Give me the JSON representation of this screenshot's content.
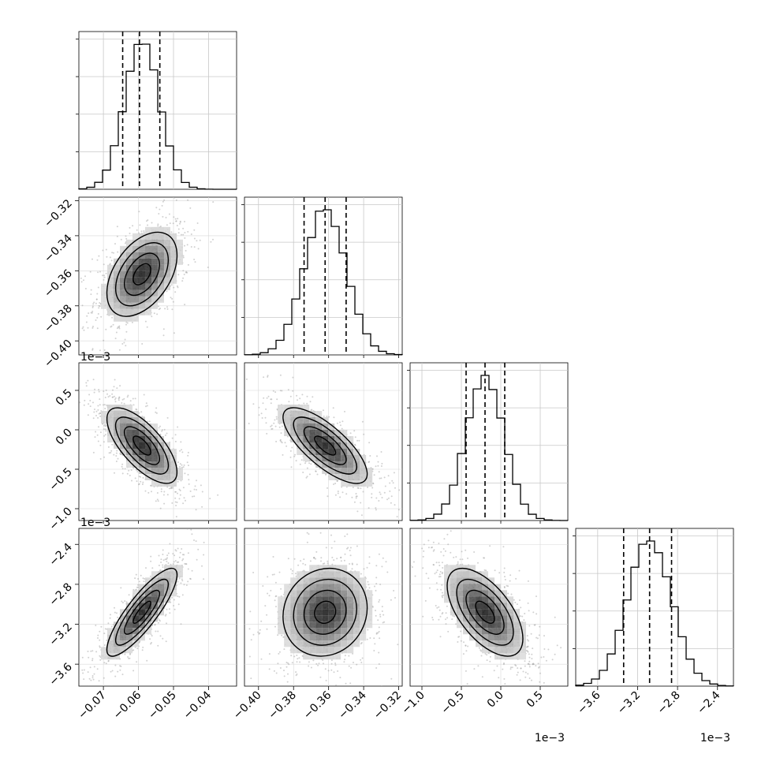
{
  "chart_data": {
    "type": "corner",
    "params": [
      {
        "range": [
          -0.077,
          -0.032
        ],
        "ticks": [
          -0.07,
          -0.06,
          -0.05,
          -0.04
        ],
        "tick_labels": [
          "−0.07",
          "−0.06",
          "−0.05",
          "−0.04"
        ],
        "quantiles": [
          -0.0645,
          -0.0597,
          -0.0539
        ],
        "mean": -0.059,
        "sd": 0.005
      },
      {
        "range": [
          -0.408,
          -0.318
        ],
        "ticks": [
          -0.4,
          -0.38,
          -0.36,
          -0.34,
          -0.32
        ],
        "tick_labels": [
          "−0.40",
          "−0.38",
          "−0.36",
          "−0.34",
          "−0.32"
        ],
        "quantiles": [
          -0.374,
          -0.362,
          -0.35
        ],
        "mean": -0.362,
        "sd": 0.012
      },
      {
        "range": [
          -1.15,
          0.85
        ],
        "ticks": [
          -1.0,
          -0.5,
          0.0,
          0.5
        ],
        "tick_labels": [
          "−1.0",
          "−0.5",
          "0.0",
          "0.5"
        ],
        "quantiles": [
          -0.44,
          -0.2,
          0.05
        ],
        "mean": -0.2,
        "sd": 0.24,
        "offset_label": "1e−3"
      },
      {
        "range": [
          -3.82,
          -2.24
        ],
        "ticks": [
          -3.6,
          -3.2,
          -2.8,
          -2.4
        ],
        "tick_labels": [
          "−3.6",
          "−3.2",
          "−2.8",
          "−2.4"
        ],
        "quantiles": [
          -3.34,
          -3.08,
          -2.86
        ],
        "mean": -3.08,
        "sd": 0.22,
        "offset_label": "1e−3"
      }
    ],
    "correlations": [
      [
        1,
        0.45,
        -0.7,
        0.85
      ],
      [
        0.45,
        1,
        -0.75,
        0.1
      ],
      [
        -0.7,
        -0.75,
        1,
        -0.6
      ],
      [
        0.85,
        0.1,
        -0.6,
        1
      ]
    ],
    "grid": true,
    "quantile_lines": "dashed",
    "contours": true
  }
}
